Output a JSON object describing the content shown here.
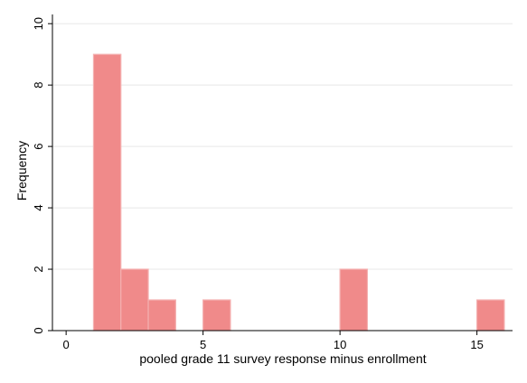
{
  "chart_data": {
    "type": "bar",
    "subtype": "histogram",
    "xlabel": "pooled grade 11 survey response minus enrollment",
    "ylabel": "Frequency",
    "xlim": [
      -0.5,
      16.3
    ],
    "ylim": [
      0,
      10.3
    ],
    "xticks": [
      0,
      5,
      10,
      15
    ],
    "yticks": [
      0,
      2,
      4,
      6,
      8,
      10
    ],
    "bins": [
      {
        "x_start": 1,
        "x_end": 2,
        "count": 9
      },
      {
        "x_start": 2,
        "x_end": 3,
        "count": 2
      },
      {
        "x_start": 3,
        "x_end": 4,
        "count": 1
      },
      {
        "x_start": 5,
        "x_end": 6,
        "count": 1
      },
      {
        "x_start": 10,
        "x_end": 11,
        "count": 2
      },
      {
        "x_start": 15,
        "x_end": 16,
        "count": 1
      }
    ],
    "grid": {
      "horizontal": true,
      "vertical": false
    },
    "colors": {
      "bar_fill": "#f08a8a",
      "bar_stroke": "#f4b0b0",
      "grid": "#e8e8e8",
      "axis": "#000000"
    }
  }
}
